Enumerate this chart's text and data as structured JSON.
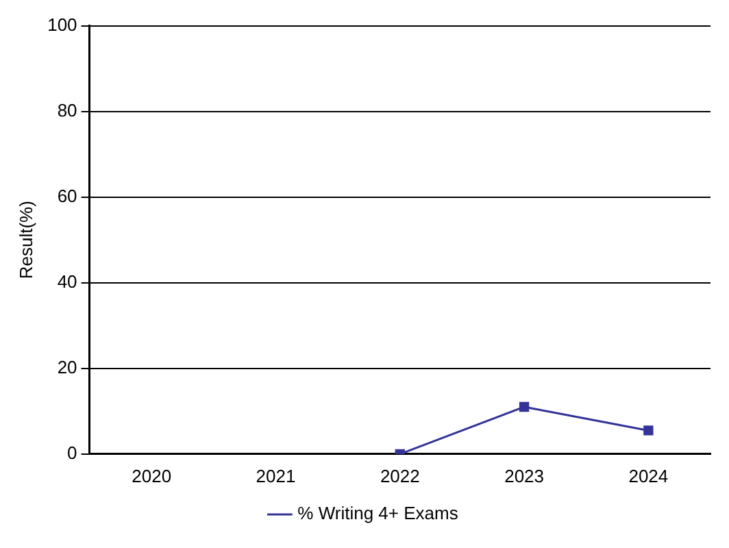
{
  "chart_data": {
    "type": "line",
    "ylabel": "Result(%)",
    "categories": [
      "2020",
      "2021",
      "2022",
      "2023",
      "2024"
    ],
    "series": [
      {
        "name": "% Writing 4+ Exams",
        "color": "#333399",
        "values": [
          null,
          null,
          0,
          11,
          5.5
        ]
      }
    ],
    "ylim": [
      0,
      100
    ],
    "yticks": [
      0,
      20,
      40,
      60,
      80,
      100
    ],
    "grid": "y",
    "legend": "bottom",
    "marker": "square",
    "line_style": "solid"
  }
}
